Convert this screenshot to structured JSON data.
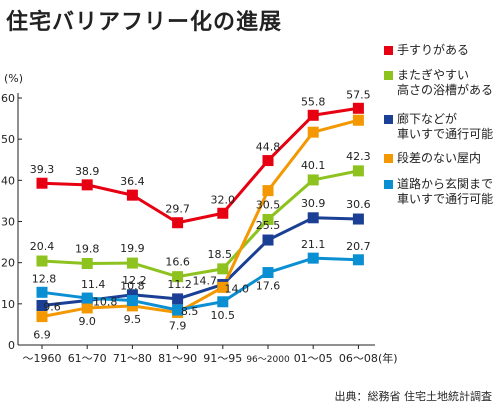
{
  "chart_data": {
    "type": "line",
    "title": "住宅バリアフリー化の進展",
    "ylabel": "(%)",
    "xunit": "(年)",
    "source": "出典：総務省 住宅土地統計調査",
    "categories": [
      "～1960",
      "61～70",
      "71～80",
      "81～90",
      "91～95",
      "96～2000",
      "01～05",
      "06～08"
    ],
    "ylim": [
      0,
      60
    ],
    "yticks": [
      0,
      10,
      20,
      30,
      40,
      50,
      60
    ],
    "grid": false,
    "legend_position": "right",
    "series": [
      {
        "name": "手すりがある",
        "color": "#e60012",
        "marker": "square",
        "values": [
          39.3,
          38.9,
          36.4,
          29.7,
          32.0,
          44.8,
          55.8,
          57.5
        ],
        "labels": [
          "39.3",
          "38.9",
          "36.4",
          "29.7",
          "32.0",
          "44.8",
          "55.8",
          "57.5"
        ]
      },
      {
        "name": "またぎやすい高さの浴槽がある",
        "color": "#8dc21f",
        "marker": "square",
        "values": [
          20.4,
          19.8,
          19.9,
          16.6,
          18.5,
          30.5,
          40.1,
          42.3
        ],
        "labels": [
          "20.4",
          "19.8",
          "19.9",
          "16.6",
          "18.5",
          "30.5",
          "40.1",
          "42.3"
        ]
      },
      {
        "name": "廊下などが車いすで通行可能",
        "color": "#1a3f94",
        "marker": "square",
        "values": [
          9.6,
          10.8,
          12.2,
          11.2,
          14.7,
          25.5,
          30.9,
          30.6
        ],
        "labels": [
          "9.6",
          "10.8",
          "12.2",
          "11.2",
          "14.7",
          "25.5",
          "30.9",
          "30.6"
        ]
      },
      {
        "name": "段差のない屋内",
        "color": "#f39800",
        "marker": "square",
        "values": [
          6.9,
          9.0,
          9.5,
          7.9,
          14.0,
          37.5,
          51.7,
          54.6
        ],
        "labels": [
          "6.9",
          "9.0",
          "9.5",
          "7.9",
          "14.0",
          "",
          "",
          ""
        ]
      },
      {
        "name": "道路から玄関まで車いすで通行可能",
        "color": "#0b8fd3",
        "marker": "square",
        "values": [
          12.8,
          11.4,
          10.8,
          8.5,
          10.5,
          17.6,
          21.1,
          20.7
        ],
        "labels": [
          "12.8",
          "11.4",
          "10.8",
          "8.5",
          "10.5",
          "17.6",
          "21.1",
          "20.7"
        ]
      }
    ],
    "legend_lines": [
      [
        "手すりがある"
      ],
      [
        "またぎやすい",
        "高さの浴槽がある"
      ],
      [
        "廊下などが",
        "車いすで通行可能"
      ],
      [
        "段差のない屋内"
      ],
      [
        "道路から玄関まで",
        "車いすで通行可能"
      ]
    ]
  }
}
